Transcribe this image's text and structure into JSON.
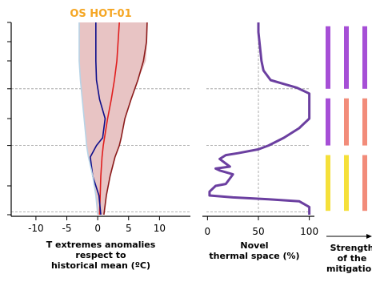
{
  "colors": {
    "title": "#f5a623",
    "band_fill": "#e8c4c4",
    "band_edge_light": "#b7d3e6",
    "max_warm": "#e01e1e",
    "max_warm_dark": "#8b1a1a",
    "min_cold": "#0d0d8a",
    "min_cold_light": "#2a66c8",
    "novel": "#6b3fa0",
    "dashed": "#999999",
    "mitigation_purple": "#a64fd6",
    "mitigation_salmon": "#f28c7a",
    "mitigation_yellow": "#f5e03a"
  },
  "chart_data": [
    {
      "type": "line",
      "title": "OS HOT-01",
      "xlabel": "T extremes anomalies\nrespect to\nhistorical mean (ºC)",
      "xlim": [
        -14,
        15
      ],
      "ylim": [
        0,
        1
      ],
      "x_ticks": [
        -10,
        -5,
        0,
        5,
        10
      ],
      "x_tick_labels": [
        "-10",
        "-5",
        "0",
        "5",
        "10"
      ],
      "grid": false,
      "y_axis_labels_visible": false,
      "dashed_reference_levels": [
        0.015,
        0.36,
        0.655
      ],
      "band": {
        "name": "upper band",
        "y": [
          1.0,
          0.9,
          0.8,
          0.7,
          0.6,
          0.5,
          0.4,
          0.36,
          0.3,
          0.2,
          0.1,
          0.0
        ],
        "left": [
          -3,
          -3,
          -3,
          -2.8,
          -2.5,
          -2.2,
          -1.9,
          -1.8,
          -1.5,
          -0.8,
          -0.3,
          0
        ],
        "right": [
          8,
          8,
          7.8,
          6.5,
          5.4,
          4.4,
          3.8,
          3.5,
          2.8,
          2.0,
          1.4,
          1.0
        ]
      },
      "series": [
        {
          "color_key": "max_warm",
          "x": [
            3.5,
            3.3,
            3.1,
            2.7,
            2.2,
            1.6,
            1.1,
            0.9,
            0.7,
            0.5,
            0.4,
            0.3
          ],
          "y": [
            1.0,
            0.9,
            0.8,
            0.7,
            0.6,
            0.5,
            0.4,
            0.36,
            0.3,
            0.2,
            0.1,
            0.0
          ]
        },
        {
          "color_key": "max_warm_dark",
          "x": [
            8,
            7.9,
            7.4,
            6.5,
            5.4,
            4.4,
            3.8,
            3.5,
            2.8,
            2.0,
            1.4,
            1.0
          ],
          "y": [
            1.0,
            0.9,
            0.8,
            0.7,
            0.6,
            0.5,
            0.4,
            0.36,
            0.3,
            0.2,
            0.1,
            0.0
          ]
        },
        {
          "color_key": "min_cold",
          "x": [
            -0.3,
            -0.3,
            -0.3,
            -0.2,
            0.3,
            1.2,
            0.8,
            -0.2,
            -1.2,
            -0.8,
            0.2,
            0.5
          ],
          "y": [
            1.0,
            0.9,
            0.8,
            0.7,
            0.6,
            0.5,
            0.4,
            0.36,
            0.3,
            0.2,
            0.1,
            0.0
          ]
        },
        {
          "color_key": "band_edge_light",
          "x": [
            -3,
            -3,
            -3,
            -2.8,
            -2.5,
            -2.2,
            -1.9,
            -1.8,
            -1.5,
            -0.8,
            -0.3,
            0
          ],
          "y": [
            1.0,
            0.9,
            0.8,
            0.7,
            0.6,
            0.5,
            0.4,
            0.36,
            0.3,
            0.2,
            0.1,
            0.0
          ]
        }
      ]
    },
    {
      "type": "line",
      "xlabel": "Novel\nthermal space (%)",
      "xlim": [
        -5,
        105
      ],
      "ylim": [
        0,
        1
      ],
      "x_ticks": [
        0,
        50,
        100
      ],
      "x_tick_labels": [
        "0",
        "50",
        "100"
      ],
      "grid": false,
      "series": [
        {
          "color_key": "novel",
          "x": [
            50,
            50,
            51,
            52,
            53,
            55,
            62,
            75,
            88,
            100,
            100,
            100,
            90,
            75,
            60,
            50,
            30,
            18,
            12,
            22,
            8,
            12,
            25,
            18,
            8,
            2,
            2,
            25,
            60,
            90,
            100,
            100
          ],
          "y": [
            1.0,
            0.95,
            0.9,
            0.85,
            0.8,
            0.75,
            0.7,
            0.68,
            0.66,
            0.63,
            0.58,
            0.5,
            0.45,
            0.4,
            0.36,
            0.34,
            0.32,
            0.31,
            0.29,
            0.25,
            0.24,
            0.23,
            0.21,
            0.16,
            0.15,
            0.12,
            0.1,
            0.09,
            0.08,
            0.07,
            0.04,
            0.0
          ]
        }
      ]
    },
    {
      "type": "bar",
      "xlabel": "Strength\nof the\nmitigation",
      "segments": [
        {
          "range": [
            0.655,
            0.98
          ],
          "colors": [
            "mitigation_purple",
            "mitigation_purple",
            "mitigation_purple"
          ]
        },
        {
          "range": [
            0.36,
            0.605
          ],
          "colors": [
            "mitigation_purple",
            "mitigation_salmon",
            "mitigation_salmon"
          ]
        },
        {
          "range": [
            0.02,
            0.31
          ],
          "colors": [
            "mitigation_yellow",
            "mitigation_yellow",
            "mitigation_salmon"
          ]
        }
      ]
    }
  ]
}
